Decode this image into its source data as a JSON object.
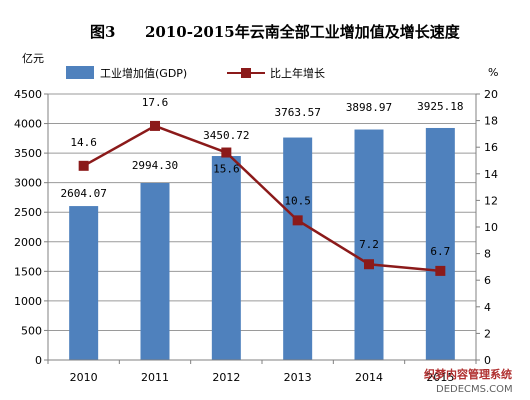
{
  "chart_data": {
    "type": "bar+line",
    "title_prefix": "图3",
    "title": "2010-2015年云南全部工业增加值及增长速度",
    "y_left_unit": "亿元",
    "y_right_unit": "%",
    "categories": [
      "2010",
      "2011",
      "2012",
      "2013",
      "2014",
      "2015"
    ],
    "y_left_ticks": [
      "0",
      "500",
      "1000",
      "1500",
      "2000",
      "2500",
      "3000",
      "3500",
      "4000",
      "4500"
    ],
    "y_right_ticks": [
      "0",
      "2",
      "4",
      "6",
      "8",
      "10",
      "12",
      "14",
      "16",
      "18",
      "20"
    ],
    "ylim_left": [
      0,
      4500
    ],
    "ylim_right": [
      0,
      20
    ],
    "grid": true,
    "legend_position": "top",
    "series": [
      {
        "name": "工业增加值(GDP)",
        "kind": "bar",
        "axis": "left",
        "color": "#4f81bd",
        "values": [
          2604.07,
          2994.3,
          3450.72,
          3763.57,
          3898.97,
          3925.18
        ],
        "labels": [
          "2604.07",
          "2994.30",
          "3450.72",
          "3763.57",
          "3898.97",
          "3925.18"
        ]
      },
      {
        "name": "比上年增长",
        "kind": "line",
        "axis": "right",
        "color": "#8b1a1a",
        "values": [
          14.6,
          17.6,
          15.6,
          10.5,
          7.2,
          6.7
        ],
        "labels": [
          "14.6",
          "17.6",
          "15.6",
          "10.5",
          "7.2",
          "6.7"
        ]
      }
    ]
  },
  "watermark": {
    "line1": "织梦内容管理系统",
    "line2": "DEDECMS.COM"
  }
}
